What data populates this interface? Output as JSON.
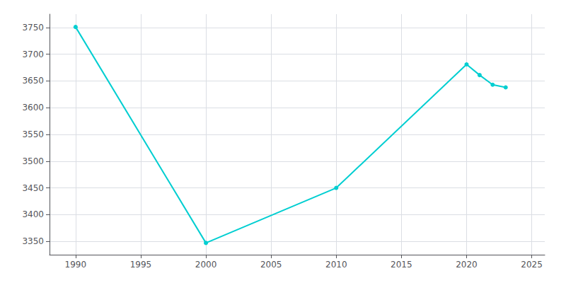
{
  "chart_data": {
    "type": "line",
    "x": [
      1990,
      2000,
      2010,
      2020,
      2021,
      2022,
      2023
    ],
    "values": [
      3751,
      3347,
      3450,
      3681,
      3661,
      3643,
      3638
    ],
    "color": "#00CED1",
    "marker": "circle",
    "xlim": [
      1988,
      2026
    ],
    "xticks": [
      1990,
      1995,
      2000,
      2005,
      2010,
      2015,
      2020,
      2025
    ],
    "ylim": [
      3325,
      3775
    ],
    "yticks": [
      3350,
      3400,
      3450,
      3500,
      3550,
      3600,
      3650,
      3700,
      3750
    ],
    "grid": true
  }
}
